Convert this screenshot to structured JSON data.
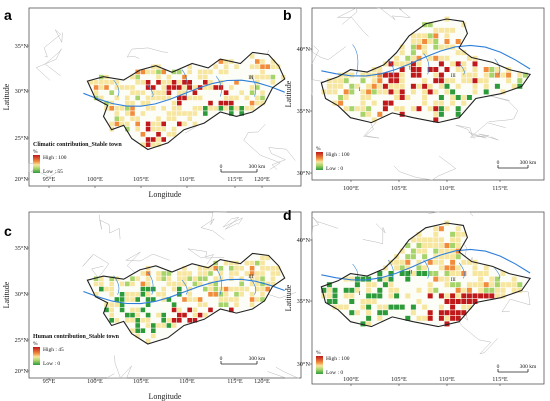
{
  "panels": [
    {
      "id": "a",
      "letter": "a",
      "basin": "yangtze",
      "x_ticks": [
        "95°E",
        "100°E",
        "105°E",
        "110°E",
        "115°E",
        "120°E"
      ],
      "y_ticks": [
        "35°N",
        "30°N",
        "25°N",
        "20°N"
      ],
      "xlabel": "Longitude",
      "ylabel": "Latitude",
      "legend": {
        "title": "Climatic contribution_Stable town",
        "unit": "%",
        "high": "High : 100",
        "low": "Low : 55",
        "mode": "climatic"
      },
      "scale": {
        "zero": "0",
        "distance": "300 km"
      },
      "region_labels": [
        "III"
      ]
    },
    {
      "id": "b",
      "letter": "b",
      "basin": "yellow",
      "x_ticks": [
        "100°E",
        "105°E",
        "110°E",
        "115°E"
      ],
      "y_ticks": [
        "40°N",
        "35°N",
        "30°N"
      ],
      "xlabel": "Longitude",
      "ylabel": "Latitude",
      "legend": {
        "title": "",
        "unit": "%",
        "high": "High : 100",
        "low": "Low : 0",
        "mode": "climatic"
      },
      "scale": {
        "zero": "0",
        "distance": "300 km"
      },
      "region_labels": [
        "I",
        "II",
        "III"
      ]
    },
    {
      "id": "c",
      "letter": "c",
      "basin": "yangtze",
      "x_ticks": [
        "95°E",
        "100°E",
        "105°E",
        "110°E",
        "115°E",
        "120°E"
      ],
      "y_ticks": [
        "35°N",
        "30°N",
        "25°N",
        "20°N"
      ],
      "xlabel": "Longitude",
      "ylabel": "Latitude",
      "legend": {
        "title": "Human contribution_Stable town",
        "unit": "%",
        "high": "High : 45",
        "low": "Low : 0",
        "mode": "human"
      },
      "scale": {
        "zero": "0",
        "distance": "300 km"
      },
      "region_labels": [
        "III"
      ]
    },
    {
      "id": "d",
      "letter": "d",
      "basin": "yellow",
      "x_ticks": [
        "100°E",
        "105°E",
        "110°E",
        "115°E"
      ],
      "y_ticks": [
        "40°N",
        "35°N",
        "30°N"
      ],
      "xlabel": "Longitude",
      "ylabel": "Latitude",
      "legend": {
        "title": "",
        "unit": "%",
        "high": "High : 100",
        "low": "Low : 0",
        "mode": "human"
      },
      "scale": {
        "zero": "0",
        "distance": "300 km"
      },
      "region_labels": [
        "I",
        "II",
        "III"
      ]
    }
  ],
  "colors": {
    "high": "#c0191b",
    "mid_high": "#f08c3c",
    "mid": "#f7e6a0",
    "mid_low": "#a6d46a",
    "low": "#2e9b3a",
    "water": "#2f7fd8",
    "outline": "#222222",
    "province": "#b8b8b8"
  }
}
